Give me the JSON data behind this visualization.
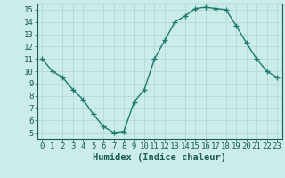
{
  "x": [
    0,
    1,
    2,
    3,
    4,
    5,
    6,
    7,
    8,
    9,
    10,
    11,
    12,
    13,
    14,
    15,
    16,
    17,
    18,
    19,
    20,
    21,
    22,
    23
  ],
  "y": [
    11,
    10,
    9.5,
    8.5,
    7.7,
    6.5,
    5.5,
    5.0,
    5.1,
    7.5,
    8.5,
    11,
    12.5,
    14,
    14.5,
    15.1,
    15.2,
    15.1,
    15.0,
    13.7,
    12.3,
    11,
    10,
    9.5
  ],
  "line_color": "#1a7a6e",
  "marker": "+",
  "marker_size": 4,
  "marker_linewidth": 1.0,
  "bg_color": "#ccecea",
  "grid_color": "#aed4d1",
  "xlabel": "Humidex (Indice chaleur)",
  "xlim": [
    -0.5,
    23.5
  ],
  "ylim": [
    4.5,
    15.5
  ],
  "yticks": [
    5,
    6,
    7,
    8,
    9,
    10,
    11,
    12,
    13,
    14,
    15
  ],
  "xticks": [
    0,
    1,
    2,
    3,
    4,
    5,
    6,
    7,
    8,
    9,
    10,
    11,
    12,
    13,
    14,
    15,
    16,
    17,
    18,
    19,
    20,
    21,
    22,
    23
  ],
  "axis_label_color": "#1a5c55",
  "tick_color": "#1a5c55",
  "spine_color": "#1a5c55",
  "xlabel_fontsize": 7.5,
  "tick_fontsize": 6.5,
  "linewidth": 1.0
}
